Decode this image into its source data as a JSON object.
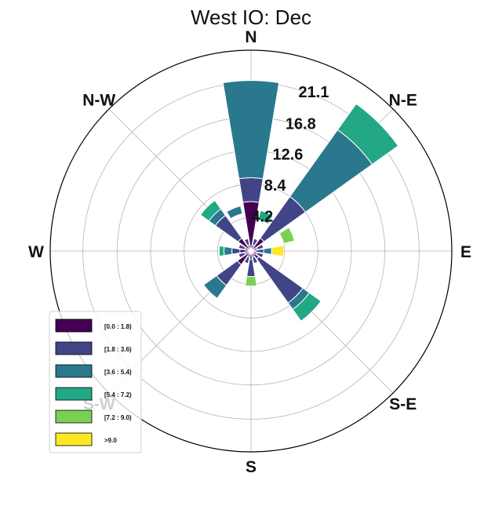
{
  "chart_data": {
    "type": "windrose",
    "title": "West IO: Dec",
    "directions": [
      "N",
      "NNE",
      "NE",
      "ENE",
      "E",
      "ESE",
      "SE",
      "SSE",
      "S",
      "SSW",
      "SW",
      "WSW",
      "W",
      "WNW",
      "NW",
      "NNW"
    ],
    "compass_labels": [
      {
        "label": "N",
        "angle_deg": 0
      },
      {
        "label": "N-E",
        "angle_deg": 45
      },
      {
        "label": "E",
        "angle_deg": 90
      },
      {
        "label": "S-E",
        "angle_deg": 135
      },
      {
        "label": "S",
        "angle_deg": 180
      },
      {
        "label": "S-W",
        "angle_deg": 225
      },
      {
        "label": "W",
        "angle_deg": 270
      },
      {
        "label": "N-W",
        "angle_deg": 315
      }
    ],
    "radial_ticks": [
      "4.2",
      "8.4",
      "12.6",
      "16.8",
      "21.1"
    ],
    "radial_tick_values": [
      4.2,
      8.4,
      12.6,
      16.8,
      21.1
    ],
    "rmax": 25.2,
    "colors": [
      "#440154",
      "#414487",
      "#2a788e",
      "#22a884",
      "#7ad151",
      "#fde725"
    ],
    "series": [
      {
        "name": "[0.0 : 1.8)",
        "values": [
          6.2,
          0.8,
          2.0,
          0.8,
          0.5,
          0.8,
          1.2,
          0.8,
          1.0,
          0.8,
          2.1,
          0.8,
          1.4,
          0.8,
          2.0,
          0.8
        ]
      },
      {
        "name": "[1.8 : 3.6)",
        "values": [
          3.0,
          0.8,
          6.4,
          0.8,
          1.1,
          0.8,
          6.8,
          0.8,
          2.2,
          0.8,
          3.2,
          0.8,
          1.0,
          0.8,
          3.5,
          0.8
        ]
      },
      {
        "name": "[3.6 : 5.4)",
        "values": [
          12.2,
          0.0,
          10.3,
          0.0,
          1.0,
          0.0,
          1.0,
          0.0,
          0.0,
          0.0,
          2.0,
          0.0,
          1.0,
          0.0,
          1.0,
          0.0
        ]
      },
      {
        "name": "[5.4 : 7.2)",
        "values": [
          0.0,
          0.0,
          4.0,
          0.0,
          0.0,
          0.0,
          1.8,
          0.0,
          0.0,
          0.0,
          0.0,
          0.0,
          0.6,
          0.0,
          1.3,
          0.0
        ]
      },
      {
        "name": "[7.2 : 9.0)",
        "values": [
          0.0,
          0.0,
          0.0,
          0.0,
          0.0,
          0.0,
          0.0,
          0.0,
          1.2,
          0.0,
          0.0,
          0.0,
          0.0,
          0.0,
          0.0,
          0.0
        ]
      },
      {
        "name": ">9.0",
        "values": [
          0.0,
          0.0,
          0.0,
          0.0,
          1.5,
          0.0,
          0.0,
          0.0,
          0.0,
          0.0,
          0.0,
          0.0,
          0.0,
          0.0,
          0.0,
          0.0
        ]
      }
    ],
    "extra_segments": [
      {
        "direction": "NNE",
        "from": 4.0,
        "to": 5.2,
        "color": "#22a884"
      },
      {
        "direction": "ENE",
        "from": 4.2,
        "to": 5.6,
        "color": "#7ad151"
      },
      {
        "direction": "NNW",
        "from": 4.8,
        "to": 5.8,
        "color": "#2a788e"
      }
    ],
    "legend_position": "lower-left",
    "grid": true
  }
}
